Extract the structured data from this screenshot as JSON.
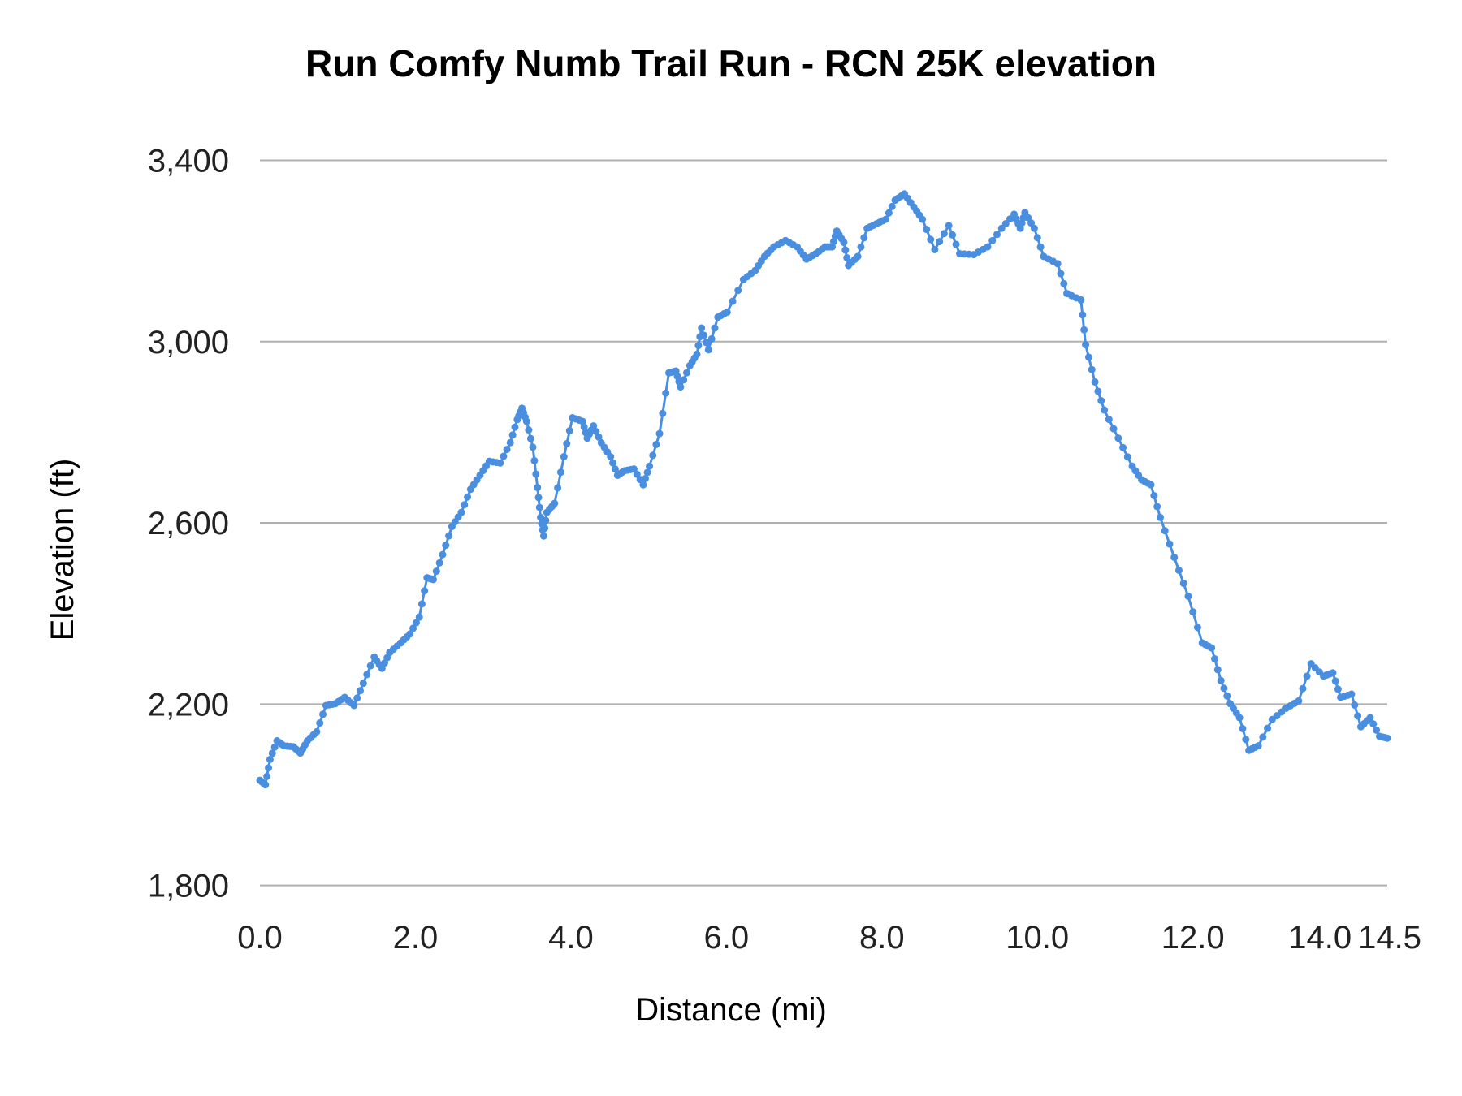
{
  "chart_data": {
    "type": "line",
    "title": "Run Comfy Numb Trail Run - RCN 25K elevation",
    "xlabel": "Distance (mi)",
    "ylabel": "Elevation (ft)",
    "xlim": [
      0,
      14.5
    ],
    "ylim": [
      1800,
      3400
    ],
    "grid": true,
    "legend": "none",
    "x_ticks": [
      "0.0",
      "2.0",
      "4.0",
      "6.0",
      "8.0",
      "10.0",
      "12.0",
      "14.0",
      "14.5"
    ],
    "x_tick_values": [
      0,
      2,
      4,
      6,
      8,
      10,
      12,
      14,
      14.5
    ],
    "y_ticks": [
      "1,800",
      "2,200",
      "2,600",
      "3,000",
      "3,400"
    ],
    "y_tick_values": [
      1800,
      2200,
      2600,
      3000,
      3400
    ],
    "series": [
      {
        "name": "Elevation",
        "color": "#4a8ee0",
        "points": [
          [
            0,
            2032
          ],
          [
            0.07,
            2022
          ],
          [
            0.13,
            2078
          ],
          [
            0.22,
            2119
          ],
          [
            0.31,
            2108
          ],
          [
            0.43,
            2106
          ],
          [
            0.52,
            2092
          ],
          [
            0.61,
            2119
          ],
          [
            0.73,
            2139
          ],
          [
            0.85,
            2197
          ],
          [
            0.97,
            2201
          ],
          [
            1.09,
            2215
          ],
          [
            1.21,
            2197
          ],
          [
            1.33,
            2246
          ],
          [
            1.47,
            2304
          ],
          [
            1.57,
            2279
          ],
          [
            1.67,
            2314
          ],
          [
            1.81,
            2335
          ],
          [
            1.93,
            2355
          ],
          [
            2.05,
            2392
          ],
          [
            2.15,
            2479
          ],
          [
            2.23,
            2475
          ],
          [
            2.35,
            2530
          ],
          [
            2.47,
            2592
          ],
          [
            2.59,
            2623
          ],
          [
            2.71,
            2674
          ],
          [
            2.83,
            2705
          ],
          [
            2.95,
            2736
          ],
          [
            3.09,
            2732
          ],
          [
            3.22,
            2777
          ],
          [
            3.31,
            2828
          ],
          [
            3.37,
            2853
          ],
          [
            3.43,
            2824
          ],
          [
            3.51,
            2767
          ],
          [
            3.57,
            2678
          ],
          [
            3.61,
            2612
          ],
          [
            3.65,
            2571
          ],
          [
            3.69,
            2623
          ],
          [
            3.79,
            2643
          ],
          [
            3.91,
            2746
          ],
          [
            4.02,
            2832
          ],
          [
            4.15,
            2824
          ],
          [
            4.21,
            2787
          ],
          [
            4.29,
            2814
          ],
          [
            4.39,
            2777
          ],
          [
            4.51,
            2746
          ],
          [
            4.6,
            2705
          ],
          [
            4.69,
            2715
          ],
          [
            4.81,
            2719
          ],
          [
            4.93,
            2684
          ],
          [
            5.01,
            2725
          ],
          [
            5.14,
            2797
          ],
          [
            5.26,
            2931
          ],
          [
            5.35,
            2935
          ],
          [
            5.41,
            2900
          ],
          [
            5.53,
            2947
          ],
          [
            5.62,
            2972
          ],
          [
            5.68,
            3030
          ],
          [
            5.77,
            2982
          ],
          [
            5.89,
            3054
          ],
          [
            6.01,
            3065
          ],
          [
            6.22,
            3137
          ],
          [
            6.37,
            3157
          ],
          [
            6.49,
            3188
          ],
          [
            6.61,
            3209
          ],
          [
            6.76,
            3223
          ],
          [
            6.91,
            3209
          ],
          [
            7.03,
            3182
          ],
          [
            7.15,
            3194
          ],
          [
            7.27,
            3209
          ],
          [
            7.36,
            3209
          ],
          [
            7.42,
            3244
          ],
          [
            7.51,
            3219
          ],
          [
            7.57,
            3168
          ],
          [
            7.69,
            3188
          ],
          [
            7.81,
            3250
          ],
          [
            7.93,
            3260
          ],
          [
            8.05,
            3270
          ],
          [
            8.17,
            3312
          ],
          [
            8.29,
            3326
          ],
          [
            8.41,
            3297
          ],
          [
            8.52,
            3270
          ],
          [
            8.68,
            3203
          ],
          [
            8.86,
            3256
          ],
          [
            9.0,
            3194
          ],
          [
            9.18,
            3192
          ],
          [
            9.36,
            3209
          ],
          [
            9.54,
            3250
          ],
          [
            9.7,
            3281
          ],
          [
            9.78,
            3250
          ],
          [
            9.84,
            3285
          ],
          [
            9.96,
            3250
          ],
          [
            10.08,
            3188
          ],
          [
            10.26,
            3172
          ],
          [
            10.38,
            3106
          ],
          [
            10.56,
            3092
          ],
          [
            10.62,
            2993
          ],
          [
            10.74,
            2911
          ],
          [
            10.86,
            2849
          ],
          [
            11.04,
            2787
          ],
          [
            11.22,
            2725
          ],
          [
            11.34,
            2695
          ],
          [
            11.46,
            2684
          ],
          [
            11.58,
            2612
          ],
          [
            11.76,
            2524
          ],
          [
            11.94,
            2438
          ],
          [
            12.12,
            2335
          ],
          [
            12.24,
            2324
          ],
          [
            12.36,
            2252
          ],
          [
            12.48,
            2201
          ],
          [
            12.6,
            2170
          ],
          [
            12.72,
            2098
          ],
          [
            12.84,
            2108
          ],
          [
            13.02,
            2166
          ],
          [
            13.2,
            2191
          ],
          [
            13.36,
            2207
          ],
          [
            13.52,
            2289
          ],
          [
            13.68,
            2262
          ],
          [
            13.8,
            2269
          ],
          [
            13.9,
            2215
          ],
          [
            14.04,
            2222
          ],
          [
            14.16,
            2150
          ],
          [
            14.28,
            2170
          ],
          [
            14.4,
            2129
          ],
          [
            14.5,
            2125
          ]
        ]
      }
    ]
  }
}
